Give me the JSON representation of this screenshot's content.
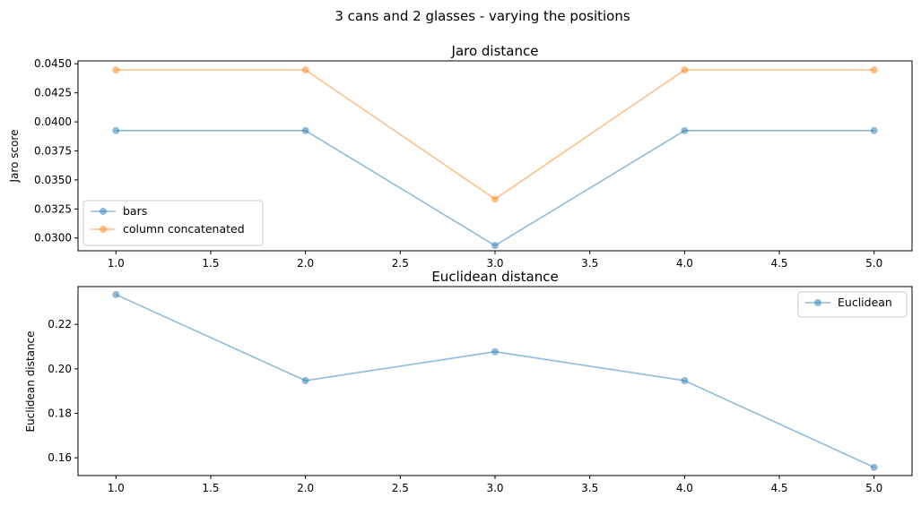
{
  "figure": {
    "suptitle": "3 cans and 2 glasses - varying the positions"
  },
  "chart_data": [
    {
      "type": "line",
      "title": "Jaro distance",
      "xlabel": "",
      "ylabel": "Jaro score",
      "xlim": [
        0.8,
        5.2
      ],
      "ylim": [
        0.0289,
        0.04525
      ],
      "xticks": [
        1.0,
        1.5,
        2.0,
        2.5,
        3.0,
        3.5,
        4.0,
        4.5,
        5.0
      ],
      "xtick_labels": [
        "1.0",
        "1.5",
        "2.0",
        "2.5",
        "3.0",
        "3.5",
        "4.0",
        "4.5",
        "5.0"
      ],
      "yticks": [
        0.03,
        0.0325,
        0.035,
        0.0375,
        0.04,
        0.0425,
        0.045
      ],
      "ytick_labels": [
        "0.0300",
        "0.0325",
        "0.0350",
        "0.0375",
        "0.0400",
        "0.0425",
        "0.0450"
      ],
      "x": [
        1,
        2,
        3,
        4,
        5
      ],
      "series": [
        {
          "name": "bars",
          "color": "#1f77b4",
          "values": [
            0.03925,
            0.03925,
            0.02935,
            0.03925,
            0.03925
          ]
        },
        {
          "name": "column concatenated",
          "color": "#ff7f0e",
          "values": [
            0.04447,
            0.04447,
            0.03335,
            0.04447,
            0.04447
          ]
        }
      ],
      "legend": "lower-left",
      "grid": false
    },
    {
      "type": "line",
      "title": "Euclidean distance",
      "xlabel": "",
      "ylabel": "Euclidean distance",
      "xlim": [
        0.8,
        5.2
      ],
      "ylim": [
        0.152,
        0.237
      ],
      "xticks": [
        1.0,
        1.5,
        2.0,
        2.5,
        3.0,
        3.5,
        4.0,
        4.5,
        5.0
      ],
      "xtick_labels": [
        "1.0",
        "1.5",
        "2.0",
        "2.5",
        "3.0",
        "3.5",
        "4.0",
        "4.5",
        "5.0"
      ],
      "yticks": [
        0.16,
        0.18,
        0.2,
        0.22
      ],
      "ytick_labels": [
        "0.16",
        "0.18",
        "0.20",
        "0.22"
      ],
      "x": [
        1,
        2,
        3,
        4,
        5
      ],
      "series": [
        {
          "name": "Euclidean",
          "color": "#1f77b4",
          "values": [
            0.2334,
            0.1947,
            0.2077,
            0.1947,
            0.1557
          ]
        }
      ],
      "legend": "upper-right",
      "grid": false
    }
  ]
}
